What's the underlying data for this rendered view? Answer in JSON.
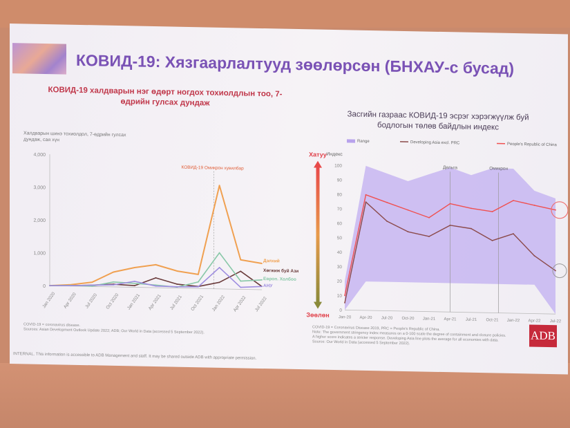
{
  "slide": {
    "title": "КОВИД-19: Хязгаарлалтууд зөөлөрсөн (БНХАУ-с бусад)",
    "footer": "INTERNAL. This information is accessible to ADB Management and staff. It may be shared outside ADB with appropriate permission.",
    "logo_text": "ADB"
  },
  "left_panel": {
    "title": "КОВИД-19 халдварын нэг өдөрт ногдох тохиолдлын тоо, 7-өдрийн гулсах дундаж",
    "ylabel": "Халдварын шинэ тохиолдол, 7-өдрийн гулсах дундаж, сая хүн",
    "annotation": "КОВИД-19 Омикрон хувилбар",
    "note": "COVID-19 = coronavirus disease.\nSources: Asian Development Outlook Update 2022; ADB; Our World in Data (accessed 5 September 2022)."
  },
  "right_panel": {
    "title": "Засгийн газраас КОВИД-19 эсрэг хэрэгжүүлж буй бодлогын төлөв байдлын индекс",
    "axis_title": "Индекс",
    "arrow_top": "Хатуу",
    "arrow_bottom": "Зөөлөн",
    "marker_1": "Дельта",
    "marker_2": "Омикрон",
    "note": "COVID-19 = Coronavirus Disease 2019, PRC = People's Republic of China.\nNote: The government stringency index measures on a 0-100 scale the degree of containment and closure policies.\nA higher score indicates a stricter response. Developing Asia line plots the average for all economies with data.\nSource: Our World in Data (accessed 5 September 2022)."
  },
  "chart_data": [
    {
      "type": "line",
      "title": "КОВИД-19 халдварын нэг өдөрт ногдох тохиолдлын тоо, 7-өдрийн гулсах дундаж",
      "ylabel": "Халдварын шинэ тохиолдол, 7-өдрийн гулсах дундаж, сая хүн",
      "ylim": [
        0,
        4000
      ],
      "yticks": [
        "0",
        "1,000",
        "2,000",
        "3,000",
        "4,000"
      ],
      "x": [
        "Jan 2020",
        "Apr 2020",
        "Jul 2020",
        "Oct 2020",
        "Jan 2021",
        "Apr 2021",
        "Jul 2021",
        "Oct 2021",
        "Jan 2022",
        "Apr 2022",
        "Jul 2022"
      ],
      "series": [
        {
          "name": "Дэлхий",
          "color": "#f0a050",
          "values": [
            0,
            40,
            130,
            450,
            600,
            700,
            520,
            430,
            3150,
            900,
            800
          ]
        },
        {
          "name": "Хөгжиж буй Ази",
          "color": "#6a3b3b",
          "values": [
            0,
            10,
            40,
            80,
            50,
            300,
            120,
            60,
            200,
            550,
            100
          ]
        },
        {
          "name": "Европ. Холбоо",
          "color": "#88c8a8",
          "values": [
            0,
            20,
            10,
            150,
            120,
            80,
            30,
            200,
            1100,
            250,
            300
          ]
        },
        {
          "name": "АНУ",
          "color": "#9d8ce0",
          "values": [
            0,
            10,
            40,
            60,
            180,
            50,
            40,
            50,
            650,
            60,
            100
          ]
        }
      ]
    },
    {
      "type": "line",
      "title": "Засгийн газраас КОВИД-19 эсрэг хэрэгжүүлж буй бодлогын төлөв байдлын индекс",
      "ylabel": "Индекс",
      "ylim": [
        0,
        100
      ],
      "yticks": [
        "0",
        "10",
        "20",
        "30",
        "40",
        "50",
        "60",
        "70",
        "80",
        "90",
        "100"
      ],
      "x": [
        "Jan-20",
        "Apr-20",
        "Jul-20",
        "Oct-20",
        "Jan-21",
        "Apr-21",
        "Jul-21",
        "Oct-21",
        "Jan-22",
        "Apr-22",
        "Jul-22"
      ],
      "series": [
        {
          "name": "Range",
          "color": "#b8a2ec",
          "upper": [
            20,
            100,
            95,
            90,
            95,
            100,
            95,
            100,
            100,
            85,
            80
          ],
          "lower": [
            0,
            20,
            20,
            20,
            20,
            20,
            20,
            20,
            20,
            20,
            0
          ]
        },
        {
          "name": "Developing Asia excl. PRC",
          "color": "#8b4a4a",
          "values": [
            5,
            75,
            62,
            55,
            52,
            60,
            58,
            50,
            55,
            40,
            30
          ]
        },
        {
          "name": "People's Republic of China",
          "color": "#f05050",
          "values": [
            10,
            80,
            75,
            70,
            65,
            75,
            72,
            70,
            78,
            75,
            72
          ]
        }
      ]
    }
  ],
  "colors": {
    "title": "#7a52b5",
    "subtitle": "#c0374a",
    "adb_red": "#c62a3b",
    "range_fill": "#c7b6f1"
  }
}
